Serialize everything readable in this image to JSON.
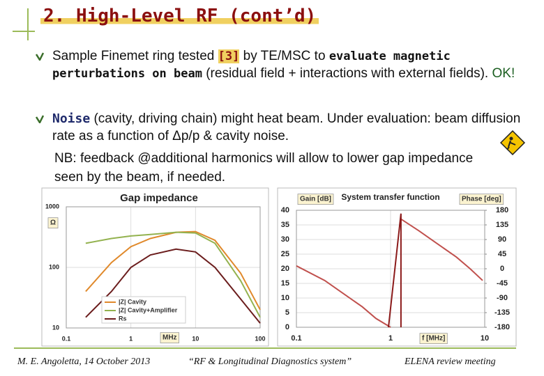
{
  "title": "2. High-Level RF (cont’d)",
  "bullets": [
    {
      "runs": [
        {
          "text": "Sample Finemet ring tested ",
          "style": "plain"
        },
        {
          "text": "[3]",
          "style": "ref"
        },
        {
          "text": " by TE/MSC to ",
          "style": "plain"
        },
        {
          "text": "evaluate magnetic perturbations on beam",
          "style": "mono"
        },
        {
          "text": " (residual field + interactions with external fields). ",
          "style": "plain"
        },
        {
          "text": "OK!",
          "style": "ok"
        }
      ]
    },
    {
      "runs": [
        {
          "text": "Noise",
          "style": "strong"
        },
        {
          "text": " (cavity, driving chain) might heat beam. Under evaluation: beam diffusion rate as a function of Δp/p & cavity noise.",
          "style": "plain"
        }
      ]
    }
  ],
  "note": "NB: feedback @additional harmonics will allow to lower gap impedance seen by the beam, if needed.",
  "chart_data": [
    {
      "type": "line",
      "title": "Gap impedance",
      "xlabel": "MHz",
      "ylabel": "Ω",
      "xscale": "log",
      "yscale": "log",
      "grid": true,
      "legend": "lower left",
      "xlim": [
        0.1,
        100
      ],
      "xticks": [
        0.1,
        1,
        10,
        100
      ],
      "ylim": [
        10,
        1000
      ],
      "yticks": [
        10,
        100,
        1000
      ],
      "series": [
        {
          "name": "|Z| Cavity",
          "color": "#e0892b",
          "x": [
            0.2,
            0.5,
            1,
            2,
            5,
            10,
            20,
            50,
            100
          ],
          "values": [
            40,
            120,
            220,
            300,
            380,
            390,
            280,
            80,
            20
          ]
        },
        {
          "name": "|Z| Cavity+Amplifier",
          "color": "#93b24f",
          "x": [
            0.2,
            0.5,
            1,
            2,
            5,
            10,
            20,
            50,
            100
          ],
          "values": [
            250,
            300,
            330,
            350,
            380,
            370,
            250,
            60,
            15
          ]
        },
        {
          "name": "Rs",
          "color": "#6b1d1d",
          "x": [
            0.2,
            0.5,
            1,
            2,
            5,
            10,
            20,
            50,
            100
          ],
          "values": [
            15,
            40,
            100,
            160,
            200,
            180,
            100,
            30,
            12
          ]
        }
      ]
    },
    {
      "type": "line",
      "title": "System transfer function",
      "xlabel": "f [MHz]",
      "ylabel": "Gain [dB]",
      "y2label": "Phase [deg]",
      "xscale": "log",
      "grid": true,
      "xlim": [
        0.1,
        10
      ],
      "xticks": [
        0.1,
        1,
        10
      ],
      "ylim": [
        0,
        40
      ],
      "yticks": [
        0,
        5,
        10,
        15,
        20,
        25,
        30,
        35,
        40
      ],
      "y2lim": [
        -180,
        180
      ],
      "y2ticks": [
        -180,
        -135,
        -90,
        -45,
        0,
        45,
        90,
        135,
        180
      ],
      "series": [
        {
          "name": "Gain",
          "color": "#c0504d",
          "x": [
            0.1,
            0.2,
            0.3,
            0.5,
            0.7,
            1,
            1.2,
            1.29,
            2,
            3,
            5,
            7,
            9.5
          ],
          "values": [
            21,
            16,
            12,
            7,
            3,
            0,
            null,
            37,
            33,
            29,
            24,
            20,
            16
          ]
        },
        {
          "name": "Phase",
          "color": "#8b1a1a",
          "axis": "y2",
          "x": [
            0.95,
            1.29,
            1.29
          ],
          "values": [
            -180,
            170,
            -180
          ]
        }
      ]
    }
  ],
  "footer": {
    "author": "M. E. Angoletta, 14 October 2013",
    "talk": "“RF & Longitudinal Diagnostics system”",
    "event": "ELENA review meeting"
  }
}
